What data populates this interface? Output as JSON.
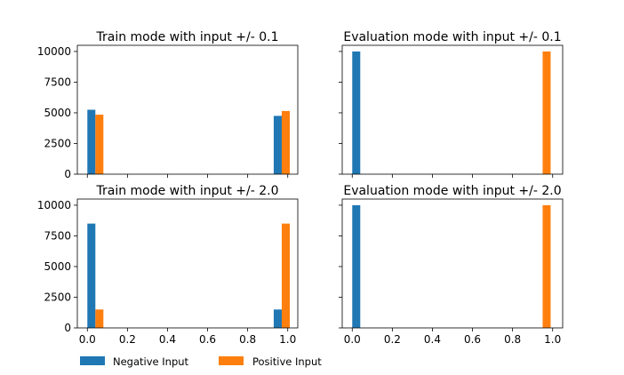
{
  "chart_data": [
    {
      "type": "bar",
      "title": "Train mode with input +/-  0.1",
      "xlim": [
        -0.05,
        1.05
      ],
      "ylim": [
        0,
        10500
      ],
      "xticks": [
        "0.0",
        "0.2",
        "0.4",
        "0.6",
        "0.8",
        "1.0"
      ],
      "yticks": [
        "0",
        "2500",
        "5000",
        "7500",
        "10000"
      ],
      "show_xtick_labels": false,
      "show_ytick_labels": true,
      "series": [
        {
          "name": "Negative Input",
          "color": "#1f77b4",
          "bars": [
            {
              "x0": 0.0,
              "x1": 0.04,
              "value": 5250
            },
            {
              "x0": 0.93,
              "x1": 0.97,
              "value": 4750
            }
          ]
        },
        {
          "name": "Positive Input",
          "color": "#ff7f0e",
          "bars": [
            {
              "x0": 0.04,
              "x1": 0.08,
              "value": 4850
            },
            {
              "x0": 0.97,
              "x1": 1.01,
              "value": 5150
            }
          ]
        }
      ]
    },
    {
      "type": "bar",
      "title": "Evaluation mode with input +/- 0.1",
      "xlim": [
        -0.05,
        1.05
      ],
      "ylim": [
        0,
        10500
      ],
      "xticks": [
        "0.0",
        "0.2",
        "0.4",
        "0.6",
        "0.8",
        "1.0"
      ],
      "yticks": [
        "0",
        "2500",
        "5000",
        "7500",
        "10000"
      ],
      "show_xtick_labels": false,
      "show_ytick_labels": false,
      "series": [
        {
          "name": "Negative Input",
          "color": "#1f77b4",
          "bars": [
            {
              "x0": 0.0,
              "x1": 0.04,
              "value": 10000
            }
          ]
        },
        {
          "name": "Positive Input",
          "color": "#ff7f0e",
          "bars": [
            {
              "x0": 0.95,
              "x1": 0.99,
              "value": 10000
            }
          ]
        }
      ]
    },
    {
      "type": "bar",
      "title": "Train mode with input +/-  2.0",
      "xlim": [
        -0.05,
        1.05
      ],
      "ylim": [
        0,
        10500
      ],
      "xticks": [
        "0.0",
        "0.2",
        "0.4",
        "0.6",
        "0.8",
        "1.0"
      ],
      "yticks": [
        "0",
        "2500",
        "5000",
        "7500",
        "10000"
      ],
      "show_xtick_labels": true,
      "show_ytick_labels": true,
      "series": [
        {
          "name": "Negative Input",
          "color": "#1f77b4",
          "bars": [
            {
              "x0": 0.0,
              "x1": 0.04,
              "value": 8500
            },
            {
              "x0": 0.93,
              "x1": 0.97,
              "value": 1500
            }
          ]
        },
        {
          "name": "Positive Input",
          "color": "#ff7f0e",
          "bars": [
            {
              "x0": 0.04,
              "x1": 0.08,
              "value": 1500
            },
            {
              "x0": 0.97,
              "x1": 1.01,
              "value": 8500
            }
          ]
        }
      ]
    },
    {
      "type": "bar",
      "title": "Evaluation mode with input +/- 2.0",
      "xlim": [
        -0.05,
        1.05
      ],
      "ylim": [
        0,
        10500
      ],
      "xticks": [
        "0.0",
        "0.2",
        "0.4",
        "0.6",
        "0.8",
        "1.0"
      ],
      "yticks": [
        "0",
        "2500",
        "5000",
        "7500",
        "10000"
      ],
      "show_xtick_labels": true,
      "show_ytick_labels": false,
      "series": [
        {
          "name": "Negative Input",
          "color": "#1f77b4",
          "bars": [
            {
              "x0": 0.0,
              "x1": 0.04,
              "value": 10000
            }
          ]
        },
        {
          "name": "Positive Input",
          "color": "#ff7f0e",
          "bars": [
            {
              "x0": 0.95,
              "x1": 0.99,
              "value": 10000
            }
          ]
        }
      ]
    }
  ],
  "legend": {
    "placement": "bottom-left",
    "items": [
      {
        "label": "Negative Input",
        "color": "#1f77b4"
      },
      {
        "label": "Positive Input",
        "color": "#ff7f0e"
      }
    ]
  }
}
